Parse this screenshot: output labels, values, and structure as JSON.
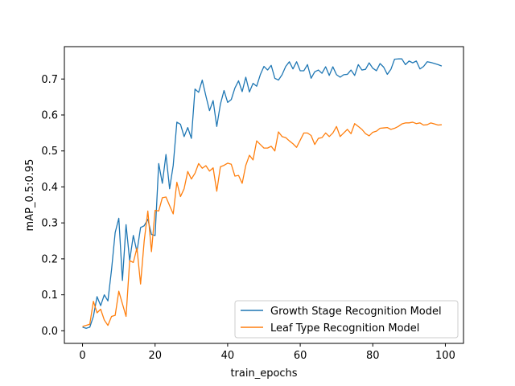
{
  "chart_data": {
    "type": "line",
    "title": "",
    "xlabel": "train_epochs",
    "ylabel": "mAP_0.5:0.95",
    "xlim": [
      -5,
      105
    ],
    "ylim": [
      -0.035,
      0.79
    ],
    "xticks": [
      0,
      20,
      40,
      60,
      80,
      100
    ],
    "yticks": [
      0.0,
      0.1,
      0.2,
      0.3,
      0.4,
      0.5,
      0.6,
      0.7
    ],
    "xtick_labels": [
      "0",
      "20",
      "40",
      "60",
      "80",
      "100"
    ],
    "ytick_labels": [
      "0.0",
      "0.1",
      "0.2",
      "0.3",
      "0.4",
      "0.5",
      "0.6",
      "0.7"
    ],
    "grid": false,
    "legend_position": "lower right",
    "x": [
      0,
      1,
      2,
      3,
      4,
      5,
      6,
      7,
      8,
      9,
      10,
      11,
      12,
      13,
      14,
      15,
      16,
      17,
      18,
      19,
      20,
      21,
      22,
      23,
      24,
      25,
      26,
      27,
      28,
      29,
      30,
      31,
      32,
      33,
      34,
      35,
      36,
      37,
      38,
      39,
      40,
      41,
      42,
      43,
      44,
      45,
      46,
      47,
      48,
      49,
      50,
      51,
      52,
      53,
      54,
      55,
      56,
      57,
      58,
      59,
      60,
      61,
      62,
      63,
      64,
      65,
      66,
      67,
      68,
      69,
      70,
      71,
      72,
      73,
      74,
      75,
      76,
      77,
      78,
      79,
      80,
      81,
      82,
      83,
      84,
      85,
      86,
      87,
      88,
      89,
      90,
      91,
      92,
      93,
      94,
      95,
      96,
      97,
      98,
      99
    ],
    "series": [
      {
        "name": "Growth Stage Recognition Model",
        "color": "#1f77b4",
        "values": [
          0.01,
          0.007,
          0.01,
          0.04,
          0.095,
          0.07,
          0.1,
          0.083,
          0.17,
          0.273,
          0.313,
          0.14,
          0.295,
          0.195,
          0.265,
          0.22,
          0.287,
          0.292,
          0.31,
          0.268,
          0.265,
          0.465,
          0.41,
          0.49,
          0.395,
          0.46,
          0.58,
          0.574,
          0.54,
          0.565,
          0.535,
          0.672,
          0.663,
          0.697,
          0.653,
          0.612,
          0.64,
          0.568,
          0.63,
          0.668,
          0.635,
          0.643,
          0.675,
          0.695,
          0.665,
          0.705,
          0.664,
          0.688,
          0.68,
          0.712,
          0.735,
          0.725,
          0.738,
          0.702,
          0.697,
          0.712,
          0.735,
          0.748,
          0.728,
          0.748,
          0.723,
          0.723,
          0.74,
          0.702,
          0.72,
          0.725,
          0.716,
          0.734,
          0.71,
          0.734,
          0.712,
          0.705,
          0.712,
          0.713,
          0.725,
          0.71,
          0.74,
          0.725,
          0.727,
          0.745,
          0.73,
          0.723,
          0.743,
          0.733,
          0.713,
          0.727,
          0.755,
          0.756,
          0.756,
          0.74,
          0.75,
          0.745,
          0.75,
          0.728,
          0.735,
          0.748,
          0.746,
          0.743,
          0.74,
          0.736
        ]
      },
      {
        "name": "Leaf Type Recognition Model",
        "color": "#ff7f0e",
        "values": [
          0.012,
          0.015,
          0.018,
          0.082,
          0.05,
          0.06,
          0.03,
          0.015,
          0.04,
          0.043,
          0.11,
          0.075,
          0.04,
          0.195,
          0.19,
          0.23,
          0.13,
          0.25,
          0.333,
          0.22,
          0.335,
          0.333,
          0.37,
          0.372,
          0.348,
          0.325,
          0.413,
          0.373,
          0.395,
          0.443,
          0.422,
          0.438,
          0.465,
          0.452,
          0.459,
          0.444,
          0.453,
          0.388,
          0.456,
          0.46,
          0.466,
          0.463,
          0.43,
          0.432,
          0.41,
          0.46,
          0.488,
          0.475,
          0.528,
          0.518,
          0.508,
          0.508,
          0.513,
          0.5,
          0.553,
          0.54,
          0.537,
          0.528,
          0.52,
          0.51,
          0.53,
          0.55,
          0.55,
          0.543,
          0.518,
          0.535,
          0.537,
          0.55,
          0.54,
          0.55,
          0.568,
          0.54,
          0.55,
          0.56,
          0.548,
          0.576,
          0.568,
          0.56,
          0.548,
          0.542,
          0.552,
          0.555,
          0.563,
          0.564,
          0.565,
          0.56,
          0.563,
          0.568,
          0.575,
          0.578,
          0.578,
          0.58,
          0.576,
          0.578,
          0.572,
          0.573,
          0.578,
          0.575,
          0.572,
          0.573
        ]
      }
    ]
  }
}
